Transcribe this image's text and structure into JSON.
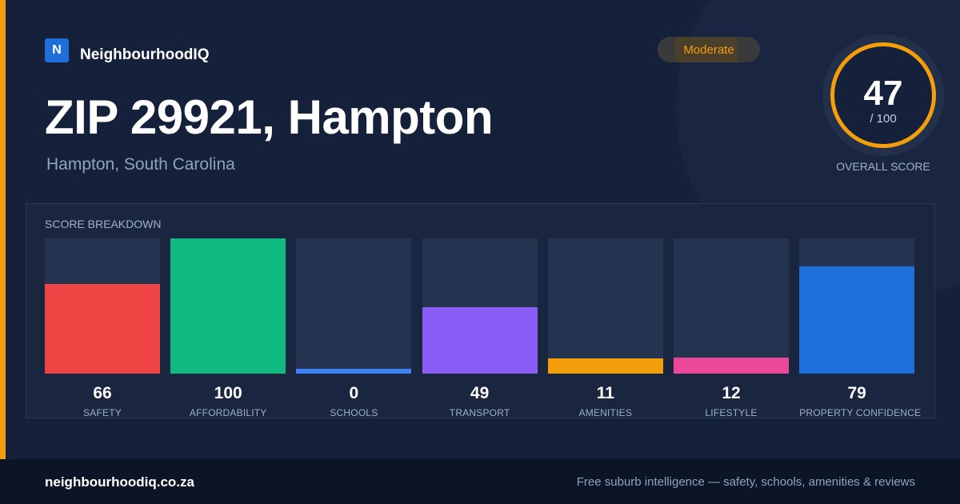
{
  "brand": {
    "logo_letter": "N",
    "name": "NeighbourhoodIQ"
  },
  "badge": {
    "label": "Moderate",
    "color": "#f59e0b"
  },
  "header": {
    "title": "ZIP 29921, Hampton",
    "subtitle": "Hampton, South Carolina"
  },
  "overall": {
    "score": "47",
    "max_label": "/ 100",
    "label": "OVERALL SCORE",
    "value": 47,
    "color": "#f59e0b"
  },
  "breakdown": {
    "title": "SCORE BREAKDOWN",
    "items": [
      {
        "label": "SAFETY",
        "value": "66",
        "score": 66,
        "color": "#ef4444"
      },
      {
        "label": "AFFORDABILITY",
        "value": "100",
        "score": 100,
        "color": "#10b981"
      },
      {
        "label": "SCHOOLS",
        "value": "0",
        "score": 0,
        "color": "#3b82f6"
      },
      {
        "label": "TRANSPORT",
        "value": "49",
        "score": 49,
        "color": "#8b5cf6"
      },
      {
        "label": "AMENITIES",
        "value": "11",
        "score": 11,
        "color": "#f59e0b"
      },
      {
        "label": "LIFESTYLE",
        "value": "12",
        "score": 12,
        "color": "#ec4899"
      },
      {
        "label": "PROPERTY CONFIDENCE",
        "value": "79",
        "score": 79,
        "color": "#1e6fd9"
      }
    ]
  },
  "footer": {
    "url": "neighbourhoodiq.co.za",
    "tagline": "Free suburb intelligence — safety, schools, amenities & reviews"
  }
}
